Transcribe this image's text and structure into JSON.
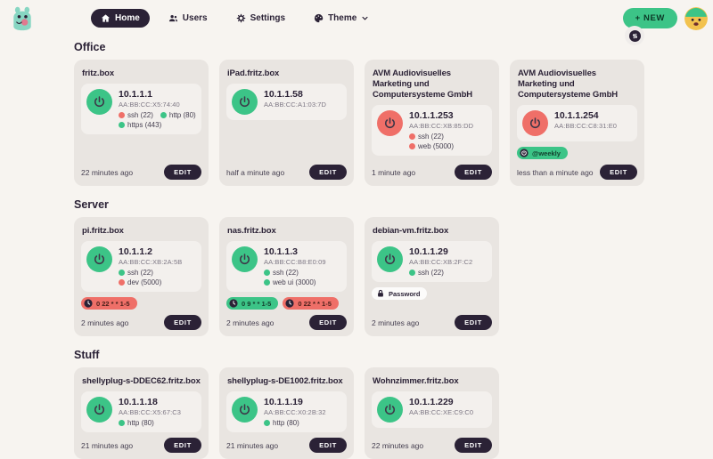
{
  "colors": {
    "accent_green": "#3cc487",
    "accent_red": "#ef6f68",
    "dark": "#2b2236",
    "page_bg": "#f7f4f0",
    "card_bg": "#e9e5e1",
    "panel_bg": "#f3f0ed"
  },
  "header": {
    "nav": [
      {
        "label": "Home",
        "icon": "home-icon",
        "active": true,
        "has_chevron": false
      },
      {
        "label": "Users",
        "icon": "users-icon",
        "active": false,
        "has_chevron": false
      },
      {
        "label": "Settings",
        "icon": "gear-icon",
        "active": false,
        "has_chevron": false
      },
      {
        "label": "Theme",
        "icon": "palette-icon",
        "active": false,
        "has_chevron": true
      }
    ],
    "new_button_label": "+ NEW",
    "sort_button_icon": "arrow-up-down-icon"
  },
  "labels": {
    "edit": "EDIT"
  },
  "sections": [
    {
      "title": "Office",
      "devices": [
        {
          "name": "fritz.box",
          "power": "on",
          "ip": "10.1.1.1",
          "mac": "AA:BB:CC:X5:74:40",
          "ports": [
            {
              "label": "ssh (22)",
              "status": "down"
            },
            {
              "label": "http (80)",
              "status": "up"
            },
            {
              "label": "https (443)",
              "status": "up"
            }
          ],
          "pills": [],
          "last_seen": "22 minutes ago"
        },
        {
          "name": "iPad.fritz.box",
          "power": "on",
          "ip": "10.1.1.58",
          "mac": "AA:BB:CC:A1:03:7D",
          "ports": [],
          "pills": [],
          "last_seen": "half a minute ago"
        },
        {
          "name": "AVM Audiovisuelles Marketing und Computersysteme GmbH",
          "power": "off",
          "ip": "10.1.1.253",
          "mac": "AA:BB:CC:XB:85:DD",
          "ports": [
            {
              "label": "ssh (22)",
              "status": "down"
            },
            {
              "label": "web (5000)",
              "status": "down"
            }
          ],
          "pills": [],
          "last_seen": "1 minute ago"
        },
        {
          "name": "AVM Audiovisuelles Marketing und Computersysteme GmbH",
          "power": "off",
          "ip": "10.1.1.254",
          "mac": "AA:BB:CC:C8:31:E0",
          "ports": [],
          "pills": [
            {
              "icon": "power-circle-icon",
              "label": "@weekly",
              "color": "green"
            }
          ],
          "last_seen": "less than a minute ago"
        }
      ]
    },
    {
      "title": "Server",
      "devices": [
        {
          "name": "pi.fritz.box",
          "power": "on",
          "ip": "10.1.1.2",
          "mac": "AA:BB:CC:XB:2A:5B",
          "ports": [
            {
              "label": "ssh (22)",
              "status": "up"
            },
            {
              "label": "dev (5000)",
              "status": "down"
            }
          ],
          "pills": [
            {
              "icon": "clock-icon",
              "label": "0 22 * * 1-5",
              "color": "red"
            }
          ],
          "last_seen": "2 minutes ago"
        },
        {
          "name": "nas.fritz.box",
          "power": "on",
          "ip": "10.1.1.3",
          "mac": "AA:BB:CC:B8:E0:09",
          "ports": [
            {
              "label": "ssh (22)",
              "status": "up"
            },
            {
              "label": "web ui (3000)",
              "status": "up"
            }
          ],
          "pills": [
            {
              "icon": "clock-icon",
              "label": "0 9 * * 1-5",
              "color": "green"
            },
            {
              "icon": "clock-icon",
              "label": "0 22 * * 1-5",
              "color": "red"
            }
          ],
          "last_seen": "2 minutes ago"
        },
        {
          "name": "debian-vm.fritz.box",
          "power": "on",
          "ip": "10.1.1.29",
          "mac": "AA:BB:CC:XB:2F:C2",
          "ports": [
            {
              "label": "ssh (22)",
              "status": "up"
            }
          ],
          "pills": [
            {
              "icon": "lock-icon",
              "label": "Password",
              "color": "white"
            }
          ],
          "last_seen": "2 minutes ago"
        }
      ]
    },
    {
      "title": "Stuff",
      "devices": [
        {
          "name": "shellyplug-s-DDEC62.fritz.box",
          "power": "on",
          "ip": "10.1.1.18",
          "mac": "AA:BB:CC:X5:67:C3",
          "ports": [
            {
              "label": "http (80)",
              "status": "up"
            }
          ],
          "pills": [],
          "last_seen": "21 minutes ago"
        },
        {
          "name": "shellyplug-s-DE1002.fritz.box",
          "power": "on",
          "ip": "10.1.1.19",
          "mac": "AA:BB:CC:X0:2B:32",
          "ports": [
            {
              "label": "http (80)",
              "status": "up"
            }
          ],
          "pills": [],
          "last_seen": "21 minutes ago"
        },
        {
          "name": "Wohnzimmer.fritz.box",
          "power": "on",
          "ip": "10.1.1.229",
          "mac": "AA:BB:CC:XE:C9:C0",
          "ports": [],
          "pills": [],
          "last_seen": "22 minutes ago"
        }
      ]
    }
  ]
}
